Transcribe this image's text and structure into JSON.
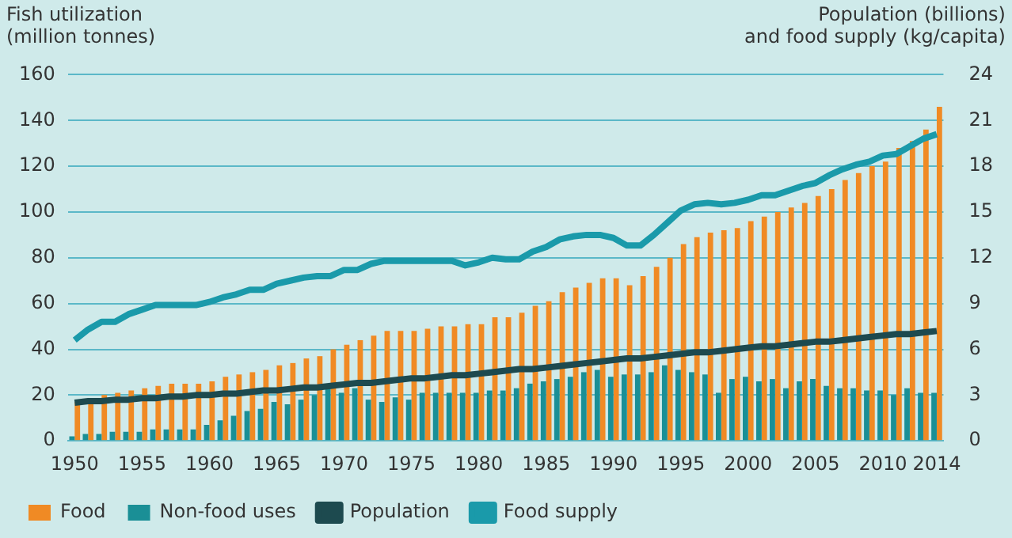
{
  "chart_data": {
    "type": "bar",
    "ylabel": "Fish utilization\n(million tonnes)",
    "y2label": "Population (billions)\nand food supply (kg/capita)",
    "categories": [
      "1950",
      null,
      null,
      null,
      null,
      "1955",
      null,
      null,
      null,
      null,
      "1960",
      null,
      null,
      null,
      null,
      "1965",
      null,
      null,
      null,
      null,
      "1970",
      null,
      null,
      null,
      null,
      "1975",
      null,
      null,
      null,
      null,
      "1980",
      null,
      null,
      null,
      null,
      "1985",
      null,
      null,
      null,
      null,
      "1990",
      null,
      null,
      null,
      null,
      "1995",
      null,
      null,
      null,
      null,
      "2000",
      null,
      null,
      null,
      null,
      "2005",
      null,
      null,
      null,
      null,
      "2010",
      null,
      null,
      null,
      "2014"
    ],
    "series": [
      {
        "name": "Food",
        "color": "#f08a24",
        "values": [
          17,
          18,
          20,
          21,
          22,
          23,
          24,
          25,
          25,
          25,
          26,
          28,
          29,
          30,
          31,
          33,
          34,
          36,
          37,
          40,
          42,
          44,
          46,
          48,
          48,
          48,
          49,
          50,
          50,
          51,
          51,
          54,
          54,
          56,
          59,
          61,
          65,
          67,
          69,
          71,
          71,
          68,
          72,
          76,
          80,
          86,
          89,
          91,
          92,
          93,
          96,
          98,
          100,
          102,
          104,
          107,
          110,
          114,
          117,
          120,
          122,
          128,
          131,
          136,
          146
        ]
      },
      {
        "name": "Non-food uses",
        "color": "#1a8f96",
        "values": [
          2,
          3,
          3,
          4,
          4,
          4,
          5,
          5,
          5,
          5,
          7,
          9,
          11,
          13,
          14,
          17,
          16,
          18,
          20,
          23,
          21,
          23,
          18,
          17,
          19,
          18,
          21,
          21,
          21,
          21,
          21,
          22,
          22,
          23,
          25,
          26,
          27,
          28,
          30,
          31,
          28,
          29,
          29,
          30,
          33,
          31,
          30,
          29,
          21,
          27,
          28,
          26,
          27,
          23,
          26,
          27,
          24,
          23,
          23,
          22,
          22,
          20,
          23,
          21,
          21
        ]
      },
      {
        "name": "Population",
        "type": "line",
        "axis": "y2",
        "color": "#1d4a4f",
        "values": [
          2.5,
          2.6,
          2.6,
          2.7,
          2.7,
          2.8,
          2.8,
          2.9,
          2.9,
          3.0,
          3.0,
          3.1,
          3.1,
          3.2,
          3.3,
          3.3,
          3.4,
          3.5,
          3.5,
          3.6,
          3.7,
          3.8,
          3.8,
          3.9,
          4.0,
          4.1,
          4.1,
          4.2,
          4.3,
          4.3,
          4.4,
          4.5,
          4.6,
          4.7,
          4.7,
          4.8,
          4.9,
          5.0,
          5.1,
          5.2,
          5.3,
          5.4,
          5.4,
          5.5,
          5.6,
          5.7,
          5.8,
          5.8,
          5.9,
          6.0,
          6.1,
          6.2,
          6.2,
          6.3,
          6.4,
          6.5,
          6.5,
          6.6,
          6.7,
          6.8,
          6.9,
          7.0,
          7.0,
          7.1,
          7.2
        ]
      },
      {
        "name": "Food supply",
        "type": "line",
        "axis": "y2",
        "color": "#1a9aaa",
        "values": [
          6.6,
          7.3,
          7.8,
          7.8,
          8.3,
          8.6,
          8.9,
          8.9,
          8.9,
          8.9,
          9.1,
          9.4,
          9.6,
          9.9,
          9.9,
          10.3,
          10.5,
          10.7,
          10.8,
          10.8,
          11.2,
          11.2,
          11.6,
          11.8,
          11.8,
          11.8,
          11.8,
          11.8,
          11.8,
          11.5,
          11.7,
          12.0,
          11.9,
          11.9,
          12.4,
          12.7,
          13.2,
          13.4,
          13.5,
          13.5,
          13.3,
          12.8,
          12.8,
          13.5,
          14.3,
          15.1,
          15.5,
          15.6,
          15.5,
          15.6,
          15.8,
          16.1,
          16.1,
          16.4,
          16.7,
          16.9,
          17.4,
          17.8,
          18.1,
          18.3,
          18.7,
          18.8,
          19.3,
          19.8,
          20.1
        ]
      }
    ],
    "ylim": [
      0,
      160
    ],
    "yticks": [
      0,
      20,
      40,
      60,
      80,
      100,
      120,
      140,
      160
    ],
    "y2lim": [
      0,
      24
    ],
    "y2ticks": [
      0,
      3,
      6,
      9,
      12,
      15,
      18,
      21,
      24
    ],
    "grid": "y",
    "legend": "bottom"
  }
}
